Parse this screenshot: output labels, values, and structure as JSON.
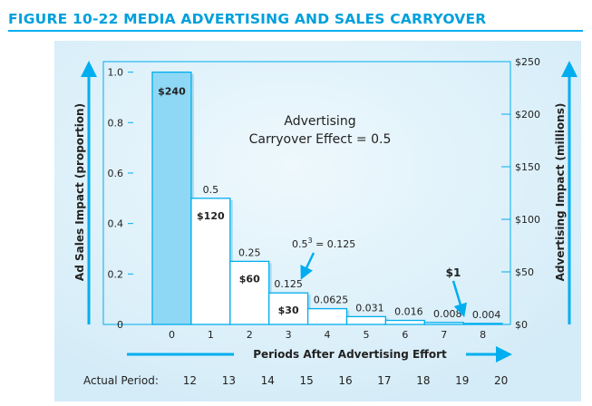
{
  "chart_data": {
    "type": "bar",
    "title": "FIGURE 10-22 MEDIA ADVERTISING AND SALES CARRYOVER",
    "xlabel": "Periods After Advertising Effort",
    "ylabel": "Ad Sales Impact (proportion)",
    "y2label": "Advertising Impact (millions)",
    "categories": [
      "0",
      "1",
      "2",
      "3",
      "4",
      "5",
      "6",
      "7",
      "8"
    ],
    "actual_period_label": "Actual Period:",
    "actual_periods": [
      "12",
      "13",
      "14",
      "15",
      "16",
      "17",
      "18",
      "19",
      "20"
    ],
    "values": [
      1.0,
      0.5,
      0.25,
      0.125,
      0.0625,
      0.031,
      0.016,
      0.008,
      0.004
    ],
    "value_labels": [
      "",
      "0.5",
      "0.25",
      "0.125",
      "0.0625",
      "0.031",
      "0.016",
      "0.008",
      "0.004"
    ],
    "dollar_labels": [
      "$240",
      "$120",
      "$60",
      "$30",
      "",
      "",
      "",
      "",
      ""
    ],
    "ylim": [
      0,
      1.0417
    ],
    "yticks": [
      "0",
      "0.2",
      "0.4",
      "0.6",
      "0.8",
      "1.0"
    ],
    "ytick_values": [
      0,
      0.2,
      0.4,
      0.6,
      0.8,
      1.0
    ],
    "y2lim": [
      0,
      250
    ],
    "y2ticks": [
      "$0",
      "$50",
      "$100",
      "$150",
      "$200",
      "$250"
    ],
    "y2tick_values": [
      0,
      50,
      100,
      150,
      200,
      250
    ],
    "annotations": {
      "effect_line1": "Advertising",
      "effect_line2": "Carryover Effect = 0.5",
      "formula_base": "0.5",
      "formula_exp": "3",
      "formula_rest": " = 0.125",
      "dollar_one": "$1"
    },
    "colors": {
      "accent": "#00aeef",
      "first_bar": "#8fd8f5",
      "bar": "#ffffff",
      "panel": "#d6eef9"
    },
    "grid": false
  }
}
